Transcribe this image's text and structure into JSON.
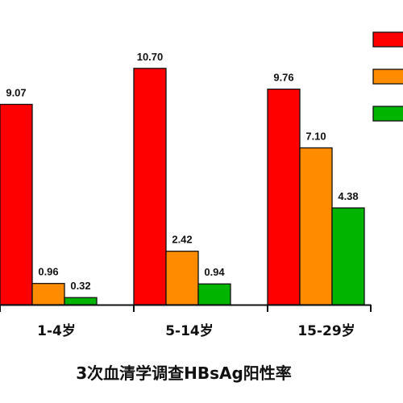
{
  "chart_data": {
    "type": "bar",
    "title": "3次血清学调查HBsAg阳性率",
    "categories": [
      "1-4岁",
      "5-14岁",
      "15-29岁"
    ],
    "series": [
      {
        "values": [
          9.07,
          10.7,
          9.76
        ],
        "labels": [
          "9.07",
          "10.70",
          "9.76"
        ],
        "color": "#ff0000"
      },
      {
        "values": [
          0.96,
          2.42,
          7.1
        ],
        "labels": [
          "0.96",
          "2.42",
          "7.10"
        ],
        "color": "#ff8c00"
      },
      {
        "values": [
          0.32,
          0.94,
          4.38
        ],
        "labels": [
          "0.32",
          "0.94",
          "4.38"
        ],
        "color": "#00b400"
      }
    ],
    "ylim": [
      0,
      12
    ],
    "legend_position": "top-right",
    "grid": false
  }
}
